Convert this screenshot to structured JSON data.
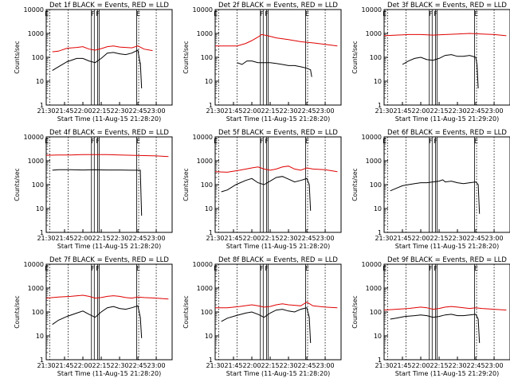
{
  "chart_data": [
    {
      "type": "line",
      "title": "Det 1f BLACK = Events, RED = LLD",
      "xlabel": "Start Time (11-Aug-15 21:28:20)",
      "ylabel": "Counts/sec",
      "x_ticks": [
        "21:30",
        "21:45",
        "22:00",
        "22:15",
        "22:30",
        "22:45",
        "23:00"
      ],
      "y_ticks": [
        "1",
        "10",
        "100",
        "1000",
        "10000"
      ],
      "ylim": [
        1,
        10000
      ],
      "yscale": "log",
      "markers": [
        "E",
        "F",
        "F",
        "E"
      ],
      "series": [
        {
          "name": "Events",
          "color": "#000000",
          "x": [
            "21:35",
            "21:40",
            "21:47",
            "21:55",
            "22:00",
            "22:05",
            "22:10",
            "22:15",
            "22:20",
            "22:25",
            "22:30",
            "22:35",
            "22:40",
            "22:45",
            "22:47",
            "22:47",
            "22:48"
          ],
          "values": [
            28,
            40,
            65,
            90,
            90,
            70,
            60,
            90,
            150,
            160,
            140,
            130,
            150,
            200,
            50,
            60,
            5
          ]
        },
        {
          "name": "LLD",
          "color": "#e00000",
          "x": [
            "21:35",
            "21:40",
            "21:47",
            "21:55",
            "22:00",
            "22:05",
            "22:10",
            "22:15",
            "22:20",
            "22:25",
            "22:30",
            "22:35",
            "22:40",
            "22:45",
            "22:50",
            "22:57"
          ],
          "values": [
            170,
            180,
            240,
            260,
            280,
            220,
            200,
            230,
            280,
            300,
            270,
            260,
            250,
            300,
            220,
            190
          ]
        }
      ]
    },
    {
      "type": "line",
      "title": "Det 2f BLACK = Events, RED = LLD",
      "xlabel": "Start Time (11-Aug-15 21:28:20)",
      "ylabel": "Counts/sec",
      "x_ticks": [
        "21:30",
        "21:45",
        "22:00",
        "22:15",
        "22:30",
        "22:45",
        "23:00"
      ],
      "y_ticks": [
        "1",
        "10",
        "100",
        "1000",
        "10000"
      ],
      "ylim": [
        1,
        10000
      ],
      "yscale": "log",
      "markers": [
        "E",
        "F",
        "F",
        "E"
      ],
      "series": [
        {
          "name": "Events",
          "color": "#000000",
          "x": [
            "21:48",
            "21:52",
            "21:56",
            "22:00",
            "22:05",
            "22:10",
            "22:15",
            "22:20",
            "22:25",
            "22:30",
            "22:35",
            "22:40",
            "22:45",
            "22:48",
            "22:49"
          ],
          "values": [
            60,
            50,
            70,
            70,
            60,
            60,
            60,
            55,
            50,
            45,
            45,
            40,
            35,
            30,
            15
          ]
        },
        {
          "name": "LLD",
          "color": "#e00000",
          "x": [
            "21:30",
            "21:40",
            "21:48",
            "21:55",
            "22:00",
            "22:05",
            "22:08",
            "22:13",
            "22:20",
            "22:30",
            "22:40",
            "22:50",
            "23:00",
            "23:10"
          ],
          "values": [
            300,
            300,
            300,
            380,
            500,
            700,
            900,
            800,
            650,
            550,
            450,
            400,
            350,
            300
          ]
        }
      ]
    },
    {
      "type": "line",
      "title": "Det 3f BLACK = Events, RED = LLD",
      "xlabel": "Start Time (11-Aug-15 21:29:20)",
      "ylabel": "Counts/sec",
      "x_ticks": [
        "21:30",
        "21:45",
        "22:00",
        "22:15",
        "22:30",
        "22:45",
        "23:00"
      ],
      "y_ticks": [
        "1",
        "10",
        "100",
        "1000",
        "10000"
      ],
      "ylim": [
        1,
        10000
      ],
      "yscale": "log",
      "markers": [
        "E",
        "F",
        "F",
        "E"
      ],
      "series": [
        {
          "name": "Events",
          "color": "#000000",
          "x": [
            "21:45",
            "21:50",
            "21:55",
            "22:00",
            "22:05",
            "22:10",
            "22:15",
            "22:20",
            "22:25",
            "22:30",
            "22:35",
            "22:40",
            "22:45",
            "22:46",
            "22:47"
          ],
          "values": [
            50,
            70,
            90,
            100,
            80,
            75,
            90,
            120,
            130,
            110,
            110,
            120,
            100,
            50,
            5
          ]
        },
        {
          "name": "LLD",
          "color": "#e00000",
          "x": [
            "21:30",
            "21:40",
            "21:50",
            "22:00",
            "22:10",
            "22:20",
            "22:30",
            "22:40",
            "22:50",
            "23:00",
            "23:10"
          ],
          "values": [
            800,
            850,
            900,
            900,
            850,
            900,
            950,
            1000,
            950,
            900,
            800
          ]
        }
      ]
    },
    {
      "type": "line",
      "title": "Det 4f BLACK = Events, RED = LLD",
      "xlabel": "Start Time (11-Aug-15 21:28:20)",
      "ylabel": "Counts/sec",
      "x_ticks": [
        "21:30",
        "21:45",
        "22:00",
        "22:15",
        "22:30",
        "22:45",
        "23:00"
      ],
      "y_ticks": [
        "1",
        "10",
        "100",
        "1000",
        "10000"
      ],
      "ylim": [
        1,
        10000
      ],
      "yscale": "log",
      "markers": [
        "E",
        "F",
        "F",
        "E"
      ],
      "series": [
        {
          "name": "Events",
          "color": "#000000",
          "x": [
            "21:35",
            "21:40",
            "21:50",
            "22:00",
            "22:10",
            "22:20",
            "22:30",
            "22:40",
            "22:47",
            "22:47",
            "22:48"
          ],
          "values": [
            400,
            420,
            420,
            410,
            420,
            410,
            410,
            400,
            400,
            350,
            5
          ]
        },
        {
          "name": "LLD",
          "color": "#e00000",
          "x": [
            "21:30",
            "21:40",
            "21:50",
            "22:00",
            "22:10",
            "22:20",
            "22:30",
            "22:40",
            "22:50",
            "23:00",
            "23:10"
          ],
          "values": [
            1700,
            1750,
            1750,
            1800,
            1800,
            1800,
            1750,
            1700,
            1650,
            1600,
            1500
          ]
        }
      ]
    },
    {
      "type": "line",
      "title": "Det 5f BLACK = Events, RED = LLD",
      "xlabel": "Start Time (11-Aug-15 21:28:20)",
      "ylabel": "Counts/sec",
      "x_ticks": [
        "21:30",
        "21:45",
        "22:00",
        "22:15",
        "22:30",
        "22:45",
        "23:00"
      ],
      "y_ticks": [
        "1",
        "10",
        "100",
        "1000",
        "10000"
      ],
      "ylim": [
        1,
        10000
      ],
      "yscale": "log",
      "markers": [
        "E",
        "F",
        "F",
        "E"
      ],
      "series": [
        {
          "name": "Events",
          "color": "#000000",
          "x": [
            "21:35",
            "21:40",
            "21:47",
            "21:55",
            "22:00",
            "22:05",
            "22:10",
            "22:15",
            "22:20",
            "22:25",
            "22:30",
            "22:35",
            "22:40",
            "22:45",
            "22:47",
            "22:48"
          ],
          "values": [
            50,
            60,
            100,
            150,
            180,
            120,
            100,
            140,
            200,
            220,
            170,
            130,
            150,
            180,
            100,
            8
          ]
        },
        {
          "name": "LLD",
          "color": "#e00000",
          "x": [
            "21:30",
            "21:40",
            "21:50",
            "22:00",
            "22:05",
            "22:10",
            "22:15",
            "22:20",
            "22:25",
            "22:30",
            "22:35",
            "22:40",
            "22:45",
            "22:50",
            "23:00",
            "23:10"
          ],
          "values": [
            350,
            330,
            400,
            500,
            550,
            450,
            400,
            450,
            550,
            600,
            450,
            400,
            500,
            450,
            420,
            350
          ]
        }
      ]
    },
    {
      "type": "line",
      "title": "Det 6f BLACK = Events, RED = LLD",
      "xlabel": "Start Time (11-Aug-15 21:28:20)",
      "ylabel": "Counts/sec",
      "x_ticks": [
        "21:30",
        "21:45",
        "22:00",
        "22:15",
        "22:30",
        "22:45",
        "23:00"
      ],
      "y_ticks": [
        "1",
        "10",
        "100",
        "1000",
        "10000"
      ],
      "ylim": [
        1,
        10000
      ],
      "yscale": "log",
      "markers": [
        "E",
        "F",
        "F",
        "E"
      ],
      "series": [
        {
          "name": "Events",
          "color": "#000000",
          "x": [
            "21:35",
            "21:40",
            "21:45",
            "21:50",
            "21:55",
            "22:00",
            "22:05",
            "22:10",
            "22:15",
            "22:18",
            "22:20",
            "22:25",
            "22:30",
            "22:35",
            "22:40",
            "22:45",
            "22:47",
            "22:48"
          ],
          "values": [
            55,
            70,
            90,
            100,
            110,
            120,
            120,
            130,
            140,
            160,
            130,
            140,
            120,
            110,
            120,
            130,
            100,
            6
          ]
        }
      ]
    },
    {
      "type": "line",
      "title": "Det 7f BLACK = Events, RED = LLD",
      "xlabel": "Start Time (11-Aug-15 21:28:20)",
      "ylabel": "Counts/sec",
      "x_ticks": [
        "21:30",
        "21:45",
        "22:00",
        "22:15",
        "22:30",
        "22:45",
        "23:00"
      ],
      "y_ticks": [
        "1",
        "10",
        "100",
        "1000",
        "10000"
      ],
      "ylim": [
        1,
        10000
      ],
      "yscale": "log",
      "markers": [
        "E",
        "F",
        "F",
        "E"
      ],
      "series": [
        {
          "name": "Events",
          "color": "#000000",
          "x": [
            "21:35",
            "21:40",
            "21:47",
            "21:55",
            "22:00",
            "22:05",
            "22:10",
            "22:15",
            "22:20",
            "22:25",
            "22:30",
            "22:35",
            "22:40",
            "22:45",
            "22:47",
            "22:48"
          ],
          "values": [
            30,
            45,
            65,
            90,
            110,
            80,
            60,
            100,
            150,
            170,
            140,
            130,
            150,
            180,
            60,
            8
          ]
        },
        {
          "name": "LLD",
          "color": "#e00000",
          "x": [
            "21:30",
            "21:40",
            "21:50",
            "22:00",
            "22:05",
            "22:10",
            "22:15",
            "22:20",
            "22:25",
            "22:30",
            "22:35",
            "22:40",
            "22:45",
            "22:50",
            "23:00",
            "23:10"
          ],
          "values": [
            380,
            420,
            450,
            500,
            450,
            380,
            400,
            450,
            480,
            450,
            400,
            380,
            420,
            400,
            380,
            350
          ]
        }
      ]
    },
    {
      "type": "line",
      "title": "Det 8f BLACK = Events, RED = LLD",
      "xlabel": "Start Time (11-Aug-15 21:28:20)",
      "ylabel": "Counts/sec",
      "x_ticks": [
        "21:30",
        "21:45",
        "22:00",
        "22:15",
        "22:30",
        "22:45",
        "23:00"
      ],
      "y_ticks": [
        "1",
        "10",
        "100",
        "1000",
        "10000"
      ],
      "ylim": [
        1,
        10000
      ],
      "yscale": "log",
      "markers": [
        "E",
        "F",
        "F",
        "E"
      ],
      "series": [
        {
          "name": "Events",
          "color": "#000000",
          "x": [
            "21:35",
            "21:40",
            "21:47",
            "21:55",
            "22:00",
            "22:05",
            "22:10",
            "22:15",
            "22:20",
            "22:25",
            "22:30",
            "22:35",
            "22:40",
            "22:45",
            "22:47",
            "22:48"
          ],
          "values": [
            40,
            55,
            70,
            90,
            100,
            80,
            60,
            90,
            120,
            130,
            110,
            100,
            130,
            150,
            60,
            5
          ]
        },
        {
          "name": "LLD",
          "color": "#e00000",
          "x": [
            "21:30",
            "21:40",
            "21:50",
            "22:00",
            "22:05",
            "22:10",
            "22:15",
            "22:20",
            "22:25",
            "22:30",
            "22:35",
            "22:40",
            "22:45",
            "22:50",
            "23:00",
            "23:10"
          ],
          "values": [
            150,
            150,
            170,
            200,
            180,
            160,
            170,
            200,
            220,
            200,
            190,
            180,
            260,
            180,
            160,
            150
          ]
        }
      ]
    },
    {
      "type": "line",
      "title": "Det 9f BLACK = Events, RED = LLD",
      "xlabel": "Start Time (11-Aug-15 21:29:20)",
      "ylabel": "Counts/sec",
      "x_ticks": [
        "21:30",
        "21:45",
        "22:00",
        "22:15",
        "22:30",
        "22:45",
        "23:00"
      ],
      "y_ticks": [
        "1",
        "10",
        "100",
        "1000",
        "10000"
      ],
      "ylim": [
        1,
        10000
      ],
      "yscale": "log",
      "markers": [
        "E",
        "F",
        "F",
        "E"
      ],
      "series": [
        {
          "name": "Events",
          "color": "#000000",
          "x": [
            "21:35",
            "21:40",
            "21:47",
            "21:55",
            "22:00",
            "22:05",
            "22:10",
            "22:15",
            "22:20",
            "22:25",
            "22:30",
            "22:35",
            "22:40",
            "22:45",
            "22:47",
            "22:48"
          ],
          "values": [
            50,
            55,
            65,
            70,
            75,
            70,
            60,
            65,
            75,
            80,
            70,
            70,
            75,
            80,
            50,
            5
          ]
        },
        {
          "name": "LLD",
          "color": "#e00000",
          "x": [
            "21:30",
            "21:40",
            "21:50",
            "22:00",
            "22:05",
            "22:10",
            "22:15",
            "22:20",
            "22:25",
            "22:30",
            "22:35",
            "22:40",
            "22:45",
            "22:50",
            "23:00",
            "23:10"
          ],
          "values": [
            120,
            130,
            140,
            160,
            150,
            130,
            140,
            160,
            170,
            160,
            150,
            140,
            150,
            140,
            130,
            120
          ]
        }
      ]
    }
  ]
}
